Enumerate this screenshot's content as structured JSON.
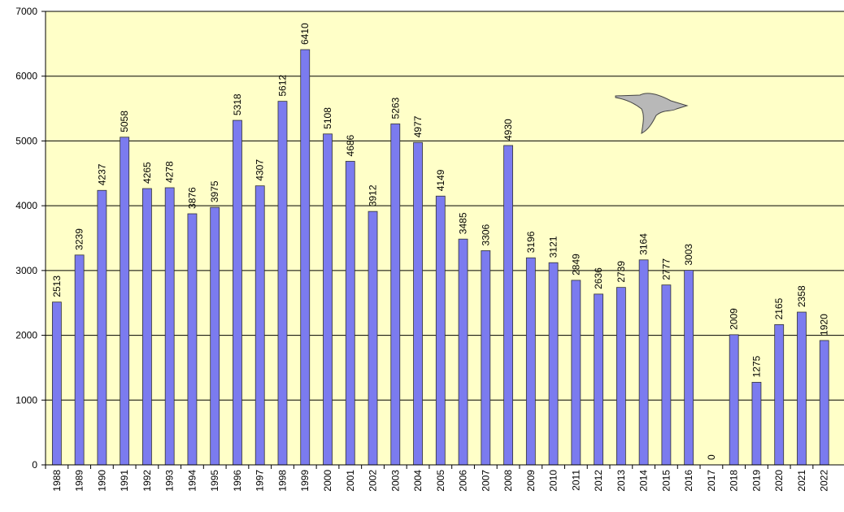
{
  "chart_data": {
    "type": "bar",
    "categories": [
      "1988",
      "1989",
      "1990",
      "1991",
      "1992",
      "1993",
      "1994",
      "1995",
      "1996",
      "1997",
      "1998",
      "1999",
      "2000",
      "2001",
      "2002",
      "2003",
      "2004",
      "2005",
      "2006",
      "2007",
      "2008",
      "2009",
      "2010",
      "2011",
      "2012",
      "2013",
      "2014",
      "2015",
      "2016",
      "2017",
      "2018",
      "2019",
      "2020",
      "2021",
      "2022"
    ],
    "values": [
      2513,
      3239,
      4237,
      5058,
      4265,
      4278,
      3876,
      3975,
      5318,
      4307,
      5612,
      6410,
      5108,
      4686,
      3912,
      5263,
      4977,
      4149,
      3485,
      3306,
      4930,
      3196,
      3121,
      2849,
      2636,
      2739,
      3164,
      2777,
      3003,
      0,
      2009,
      1275,
      2165,
      2358,
      1920
    ],
    "color": "#7b7bef",
    "ylim": [
      0,
      7000
    ],
    "yticks": [
      0,
      1000,
      2000,
      3000,
      4000,
      5000,
      6000,
      7000
    ],
    "grid": true
  }
}
